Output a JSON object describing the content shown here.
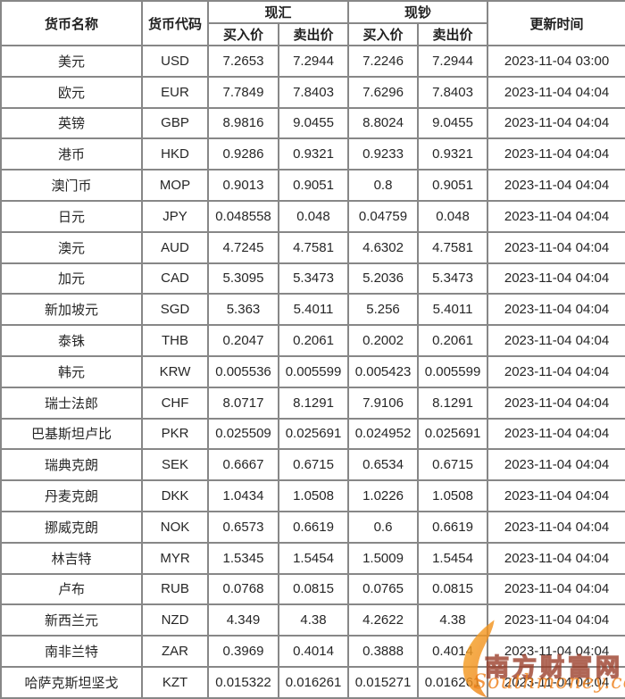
{
  "header": {
    "currency_name": "货币名称",
    "currency_code": "货币代码",
    "spot_group": "现汇",
    "cash_group": "现钞",
    "buy_price": "买入价",
    "sell_price": "卖出价",
    "update_time": "更新时间"
  },
  "watermark": {
    "site_name_cn": "南方财富网",
    "site_name_en": "Southmoney.com",
    "swoosh_icon": "orange-swoosh",
    "orange": "#ee7e17",
    "dark_red": "#993a26"
  },
  "colors": {
    "border": "#878787",
    "text": "#262626",
    "background": "#ffffff"
  },
  "chart_data": {
    "type": "table",
    "column_groups": [
      {
        "label": "现汇",
        "columns": [
          "买入价",
          "卖出价"
        ]
      },
      {
        "label": "现钞",
        "columns": [
          "买入价",
          "卖出价"
        ]
      }
    ],
    "columns": [
      "货币名称",
      "货币代码",
      "现汇买入价",
      "现汇卖出价",
      "现钞买入价",
      "现钞卖出价",
      "更新时间"
    ],
    "rows": [
      [
        "美元",
        "USD",
        "7.2653",
        "7.2944",
        "7.2246",
        "7.2944",
        "2023-11-04 03:00"
      ],
      [
        "欧元",
        "EUR",
        "7.7849",
        "7.8403",
        "7.6296",
        "7.8403",
        "2023-11-04 04:04"
      ],
      [
        "英镑",
        "GBP",
        "8.9816",
        "9.0455",
        "8.8024",
        "9.0455",
        "2023-11-04 04:04"
      ],
      [
        "港币",
        "HKD",
        "0.9286",
        "0.9321",
        "0.9233",
        "0.9321",
        "2023-11-04 04:04"
      ],
      [
        "澳门币",
        "MOP",
        "0.9013",
        "0.9051",
        "0.8",
        "0.9051",
        "2023-11-04 04:04"
      ],
      [
        "日元",
        "JPY",
        "0.048558",
        "0.048",
        "0.04759",
        "0.048",
        "2023-11-04 04:04"
      ],
      [
        "澳元",
        "AUD",
        "4.7245",
        "4.7581",
        "4.6302",
        "4.7581",
        "2023-11-04 04:04"
      ],
      [
        "加元",
        "CAD",
        "5.3095",
        "5.3473",
        "5.2036",
        "5.3473",
        "2023-11-04 04:04"
      ],
      [
        "新加坡元",
        "SGD",
        "5.363",
        "5.4011",
        "5.256",
        "5.4011",
        "2023-11-04 04:04"
      ],
      [
        "泰铢",
        "THB",
        "0.2047",
        "0.2061",
        "0.2002",
        "0.2061",
        "2023-11-04 04:04"
      ],
      [
        "韩元",
        "KRW",
        "0.005536",
        "0.005599",
        "0.005423",
        "0.005599",
        "2023-11-04 04:04"
      ],
      [
        "瑞士法郎",
        "CHF",
        "8.0717",
        "8.1291",
        "7.9106",
        "8.1291",
        "2023-11-04 04:04"
      ],
      [
        "巴基斯坦卢比",
        "PKR",
        "0.025509",
        "0.025691",
        "0.024952",
        "0.025691",
        "2023-11-04 04:04"
      ],
      [
        "瑞典克朗",
        "SEK",
        "0.6667",
        "0.6715",
        "0.6534",
        "0.6715",
        "2023-11-04 04:04"
      ],
      [
        "丹麦克朗",
        "DKK",
        "1.0434",
        "1.0508",
        "1.0226",
        "1.0508",
        "2023-11-04 04:04"
      ],
      [
        "挪威克朗",
        "NOK",
        "0.6573",
        "0.6619",
        "0.6",
        "0.6619",
        "2023-11-04 04:04"
      ],
      [
        "林吉特",
        "MYR",
        "1.5345",
        "1.5454",
        "1.5009",
        "1.5454",
        "2023-11-04 04:04"
      ],
      [
        "卢布",
        "RUB",
        "0.0768",
        "0.0815",
        "0.0765",
        "0.0815",
        "2023-11-04 04:04"
      ],
      [
        "新西兰元",
        "NZD",
        "4.349",
        "4.38",
        "4.2622",
        "4.38",
        "2023-11-04 04:04"
      ],
      [
        "南非兰特",
        "ZAR",
        "0.3969",
        "0.4014",
        "0.3888",
        "0.4014",
        "2023-11-04 04:04"
      ],
      [
        "哈萨克斯坦坚戈",
        "KZT",
        "0.015322",
        "0.016261",
        "0.015271",
        "0.016261",
        "2023-11-04 04:04"
      ]
    ]
  }
}
